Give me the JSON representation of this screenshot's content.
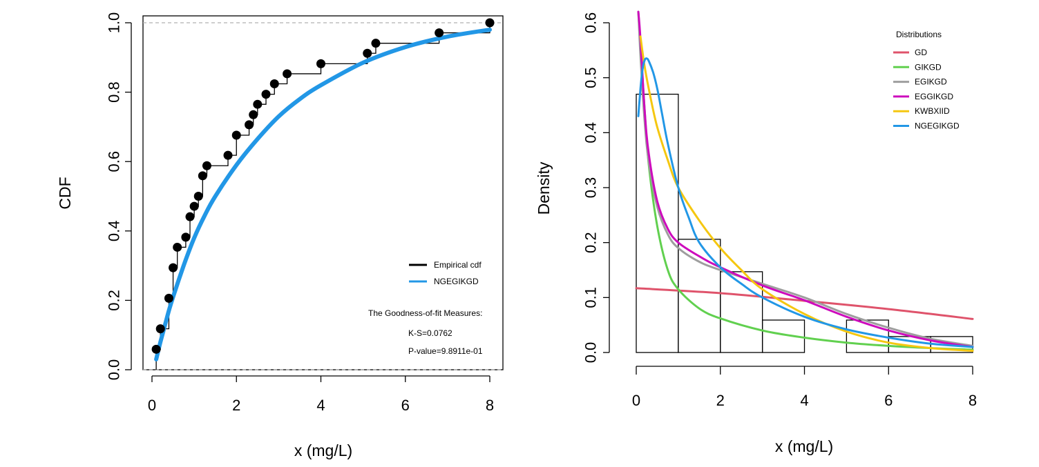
{
  "chart_data": [
    {
      "type": "line",
      "panel": "cdf",
      "xlabel": "x (mg/L)",
      "ylabel": "CDF",
      "xlim": [
        0,
        8
      ],
      "ylim": [
        0,
        1
      ],
      "x_ticks": [
        0,
        2,
        4,
        6,
        8
      ],
      "x_tick_labels": [
        "0",
        "2",
        "4",
        "6",
        "8"
      ],
      "y_ticks": [
        0,
        0.2,
        0.4,
        0.6,
        0.8,
        1
      ],
      "y_tick_labels": [
        "0.0",
        "0.2",
        "0.4",
        "0.6",
        "0.8",
        "1.0"
      ],
      "reference_lines": [
        0,
        1
      ],
      "empirical_points": {
        "x": [
          0.1,
          0.2,
          0.4,
          0.5,
          0.6,
          0.8,
          0.9,
          1.0,
          1.1,
          1.2,
          1.3,
          1.8,
          2.0,
          2.3,
          2.4,
          2.5,
          2.7,
          2.9,
          3.2,
          4.0,
          5.1,
          5.3,
          6.8,
          8.0
        ],
        "y": [
          0.059,
          0.118,
          0.206,
          0.294,
          0.353,
          0.382,
          0.441,
          0.471,
          0.5,
          0.559,
          0.588,
          0.618,
          0.676,
          0.706,
          0.735,
          0.765,
          0.794,
          0.824,
          0.853,
          0.882,
          0.912,
          0.941,
          0.971,
          1.0
        ]
      },
      "fitted_curve": {
        "name": "NGEGIKGD",
        "x": [
          0.1,
          0.2,
          0.3,
          0.4,
          0.5,
          0.75,
          1.0,
          1.25,
          1.5,
          2.0,
          2.5,
          3.0,
          3.5,
          4.0,
          5.0,
          6.0,
          7.0,
          8.0
        ],
        "y": [
          0.03,
          0.08,
          0.125,
          0.17,
          0.21,
          0.3,
          0.38,
          0.445,
          0.5,
          0.59,
          0.665,
          0.73,
          0.78,
          0.82,
          0.885,
          0.93,
          0.96,
          0.98
        ]
      },
      "legend": {
        "placement": "bottom-right",
        "entries": [
          {
            "label": "Empirical cdf",
            "color": "#000000"
          },
          {
            "label": "NGEGIKGD",
            "color": "#2297E6"
          }
        ]
      },
      "annotations": {
        "heading": "The Goodness-of-fit Measures:",
        "ks": "K-S=0.0762",
        "pvalue": "P-value=9.8911e-01"
      }
    },
    {
      "type": "bar",
      "panel": "density",
      "xlabel": "x (mg/L)",
      "ylabel": "Density",
      "xlim": [
        0,
        8
      ],
      "ylim": [
        0,
        0.6
      ],
      "x_ticks": [
        0,
        2,
        4,
        6,
        8
      ],
      "x_tick_labels": [
        "0",
        "2",
        "4",
        "6",
        "8"
      ],
      "y_ticks": [
        0,
        0.1,
        0.2,
        0.3,
        0.4,
        0.5,
        0.6
      ],
      "y_tick_labels": [
        "0.0",
        "0.1",
        "0.2",
        "0.3",
        "0.4",
        "0.5",
        "0.6"
      ],
      "histogram": {
        "breaks": [
          0,
          1,
          2,
          3,
          4,
          5,
          6,
          7,
          8
        ],
        "density": [
          0.47,
          0.206,
          0.147,
          0.059,
          0.0,
          0.059,
          0.029,
          0.029
        ]
      },
      "legend_title": "Distributions",
      "legend_placement": "top-right",
      "series": [
        {
          "name": "GD",
          "color": "#DF536B",
          "x": [
            0.0,
            2.0,
            4.0,
            6.0,
            8.0
          ],
          "y": [
            0.117,
            0.108,
            0.094,
            0.079,
            0.061
          ]
        },
        {
          "name": "GIKGD",
          "color": "#61D04F",
          "x": [
            0.05,
            0.1,
            0.2,
            0.3,
            0.5,
            0.75,
            1.0,
            1.5,
            2.0,
            3.0,
            4.0,
            5.0,
            6.0,
            7.0,
            8.0
          ],
          "y": [
            0.62,
            0.56,
            0.44,
            0.34,
            0.23,
            0.15,
            0.115,
            0.08,
            0.062,
            0.04,
            0.027,
            0.018,
            0.012,
            0.008,
            0.005
          ]
        },
        {
          "name": "EGIKGD",
          "color": "#9E9E9E",
          "x": [
            0.05,
            0.1,
            0.2,
            0.3,
            0.5,
            0.75,
            1.0,
            1.5,
            2.0,
            3.0,
            4.0,
            5.0,
            6.0,
            7.0,
            8.0
          ],
          "y": [
            0.62,
            0.54,
            0.42,
            0.345,
            0.265,
            0.215,
            0.19,
            0.165,
            0.15,
            0.125,
            0.1,
            0.07,
            0.045,
            0.025,
            0.012
          ]
        },
        {
          "name": "EGGIKGD",
          "color": "#CD0BBC",
          "x": [
            0.05,
            0.1,
            0.2,
            0.3,
            0.5,
            0.75,
            1.0,
            1.5,
            2.0,
            3.0,
            4.0,
            5.0,
            6.0,
            7.0,
            8.0
          ],
          "y": [
            0.62,
            0.57,
            0.44,
            0.36,
            0.275,
            0.225,
            0.2,
            0.175,
            0.155,
            0.122,
            0.095,
            0.065,
            0.04,
            0.022,
            0.01
          ]
        },
        {
          "name": "KWBXIID",
          "color": "#F5C710",
          "x": [
            0.1,
            0.2,
            0.35,
            0.5,
            0.75,
            1.0,
            1.5,
            2.0,
            2.5,
            3.0,
            4.0,
            5.0,
            6.0,
            7.0,
            8.0
          ],
          "y": [
            0.575,
            0.52,
            0.46,
            0.41,
            0.35,
            0.3,
            0.24,
            0.19,
            0.15,
            0.115,
            0.07,
            0.038,
            0.018,
            0.008,
            0.003
          ]
        },
        {
          "name": "NGEGIKGD",
          "color": "#2297E6",
          "x": [
            0.05,
            0.1,
            0.15,
            0.2,
            0.25,
            0.3,
            0.4,
            0.5,
            0.6,
            0.75,
            1.0,
            1.25,
            1.5,
            2.0,
            2.5,
            3.0,
            4.0,
            5.0,
            6.0,
            7.0,
            8.0
          ],
          "y": [
            0.43,
            0.48,
            0.515,
            0.532,
            0.535,
            0.53,
            0.51,
            0.48,
            0.44,
            0.38,
            0.3,
            0.245,
            0.2,
            0.155,
            0.125,
            0.1,
            0.065,
            0.042,
            0.027,
            0.016,
            0.01
          ]
        }
      ]
    }
  ]
}
